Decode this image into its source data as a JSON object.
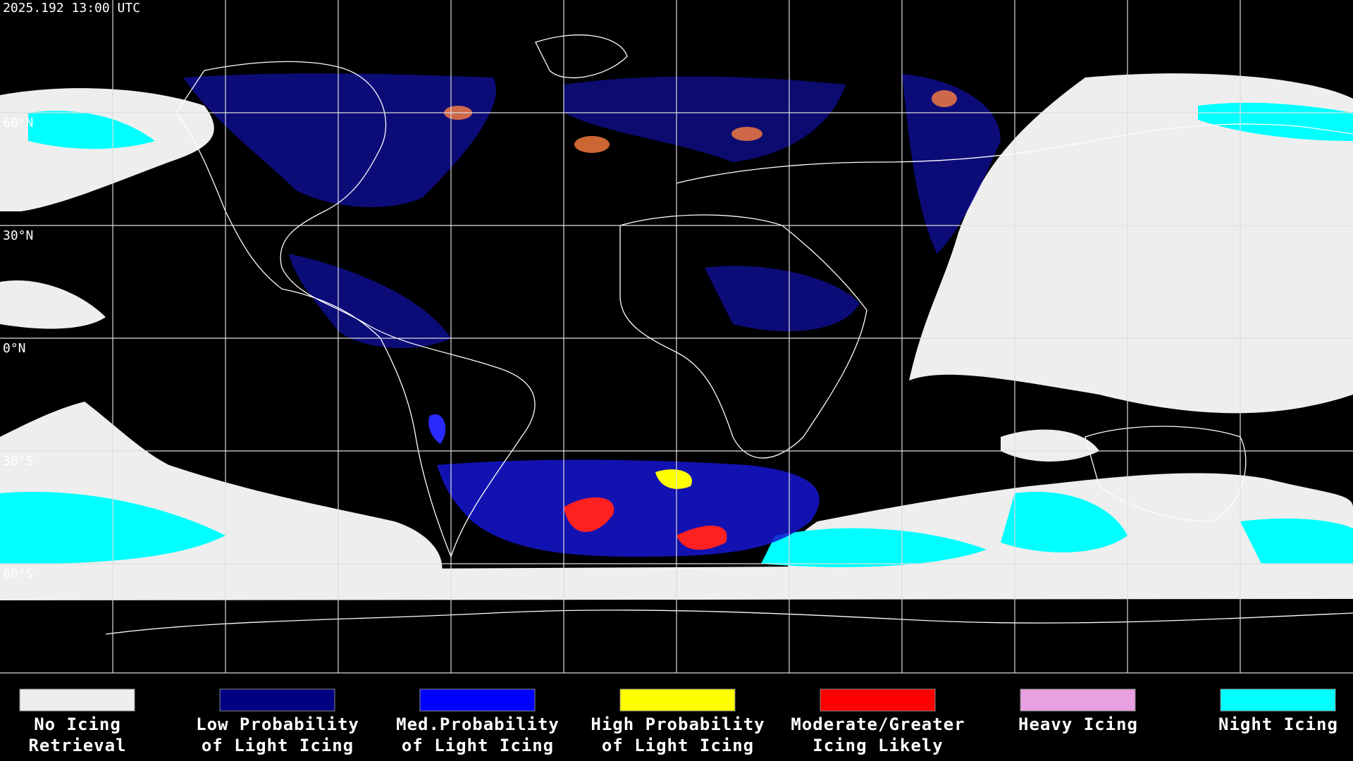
{
  "timestamp": "2025.192 13:00 UTC",
  "lat_labels": [
    "60°N",
    "30°N",
    "0°N",
    "30°S",
    "60°S"
  ],
  "legend": [
    {
      "lines": [
        "No Icing",
        "Retrieval"
      ],
      "color": "#eeeeee"
    },
    {
      "lines": [
        "Low Probability",
        "of Light Icing"
      ],
      "color": "#000080"
    },
    {
      "lines": [
        "Med.Probability",
        "of Light Icing"
      ],
      "color": "#0000ff"
    },
    {
      "lines": [
        "High Probability",
        "of Light Icing"
      ],
      "color": "#ffff00"
    },
    {
      "lines": [
        "Moderate/Greater",
        "Icing Likely"
      ],
      "color": "#ff0000"
    },
    {
      "lines": [
        "Heavy Icing"
      ],
      "color": "#e8a0e0"
    },
    {
      "lines": [
        "Night Icing"
      ],
      "color": "#00ffff"
    }
  ]
}
